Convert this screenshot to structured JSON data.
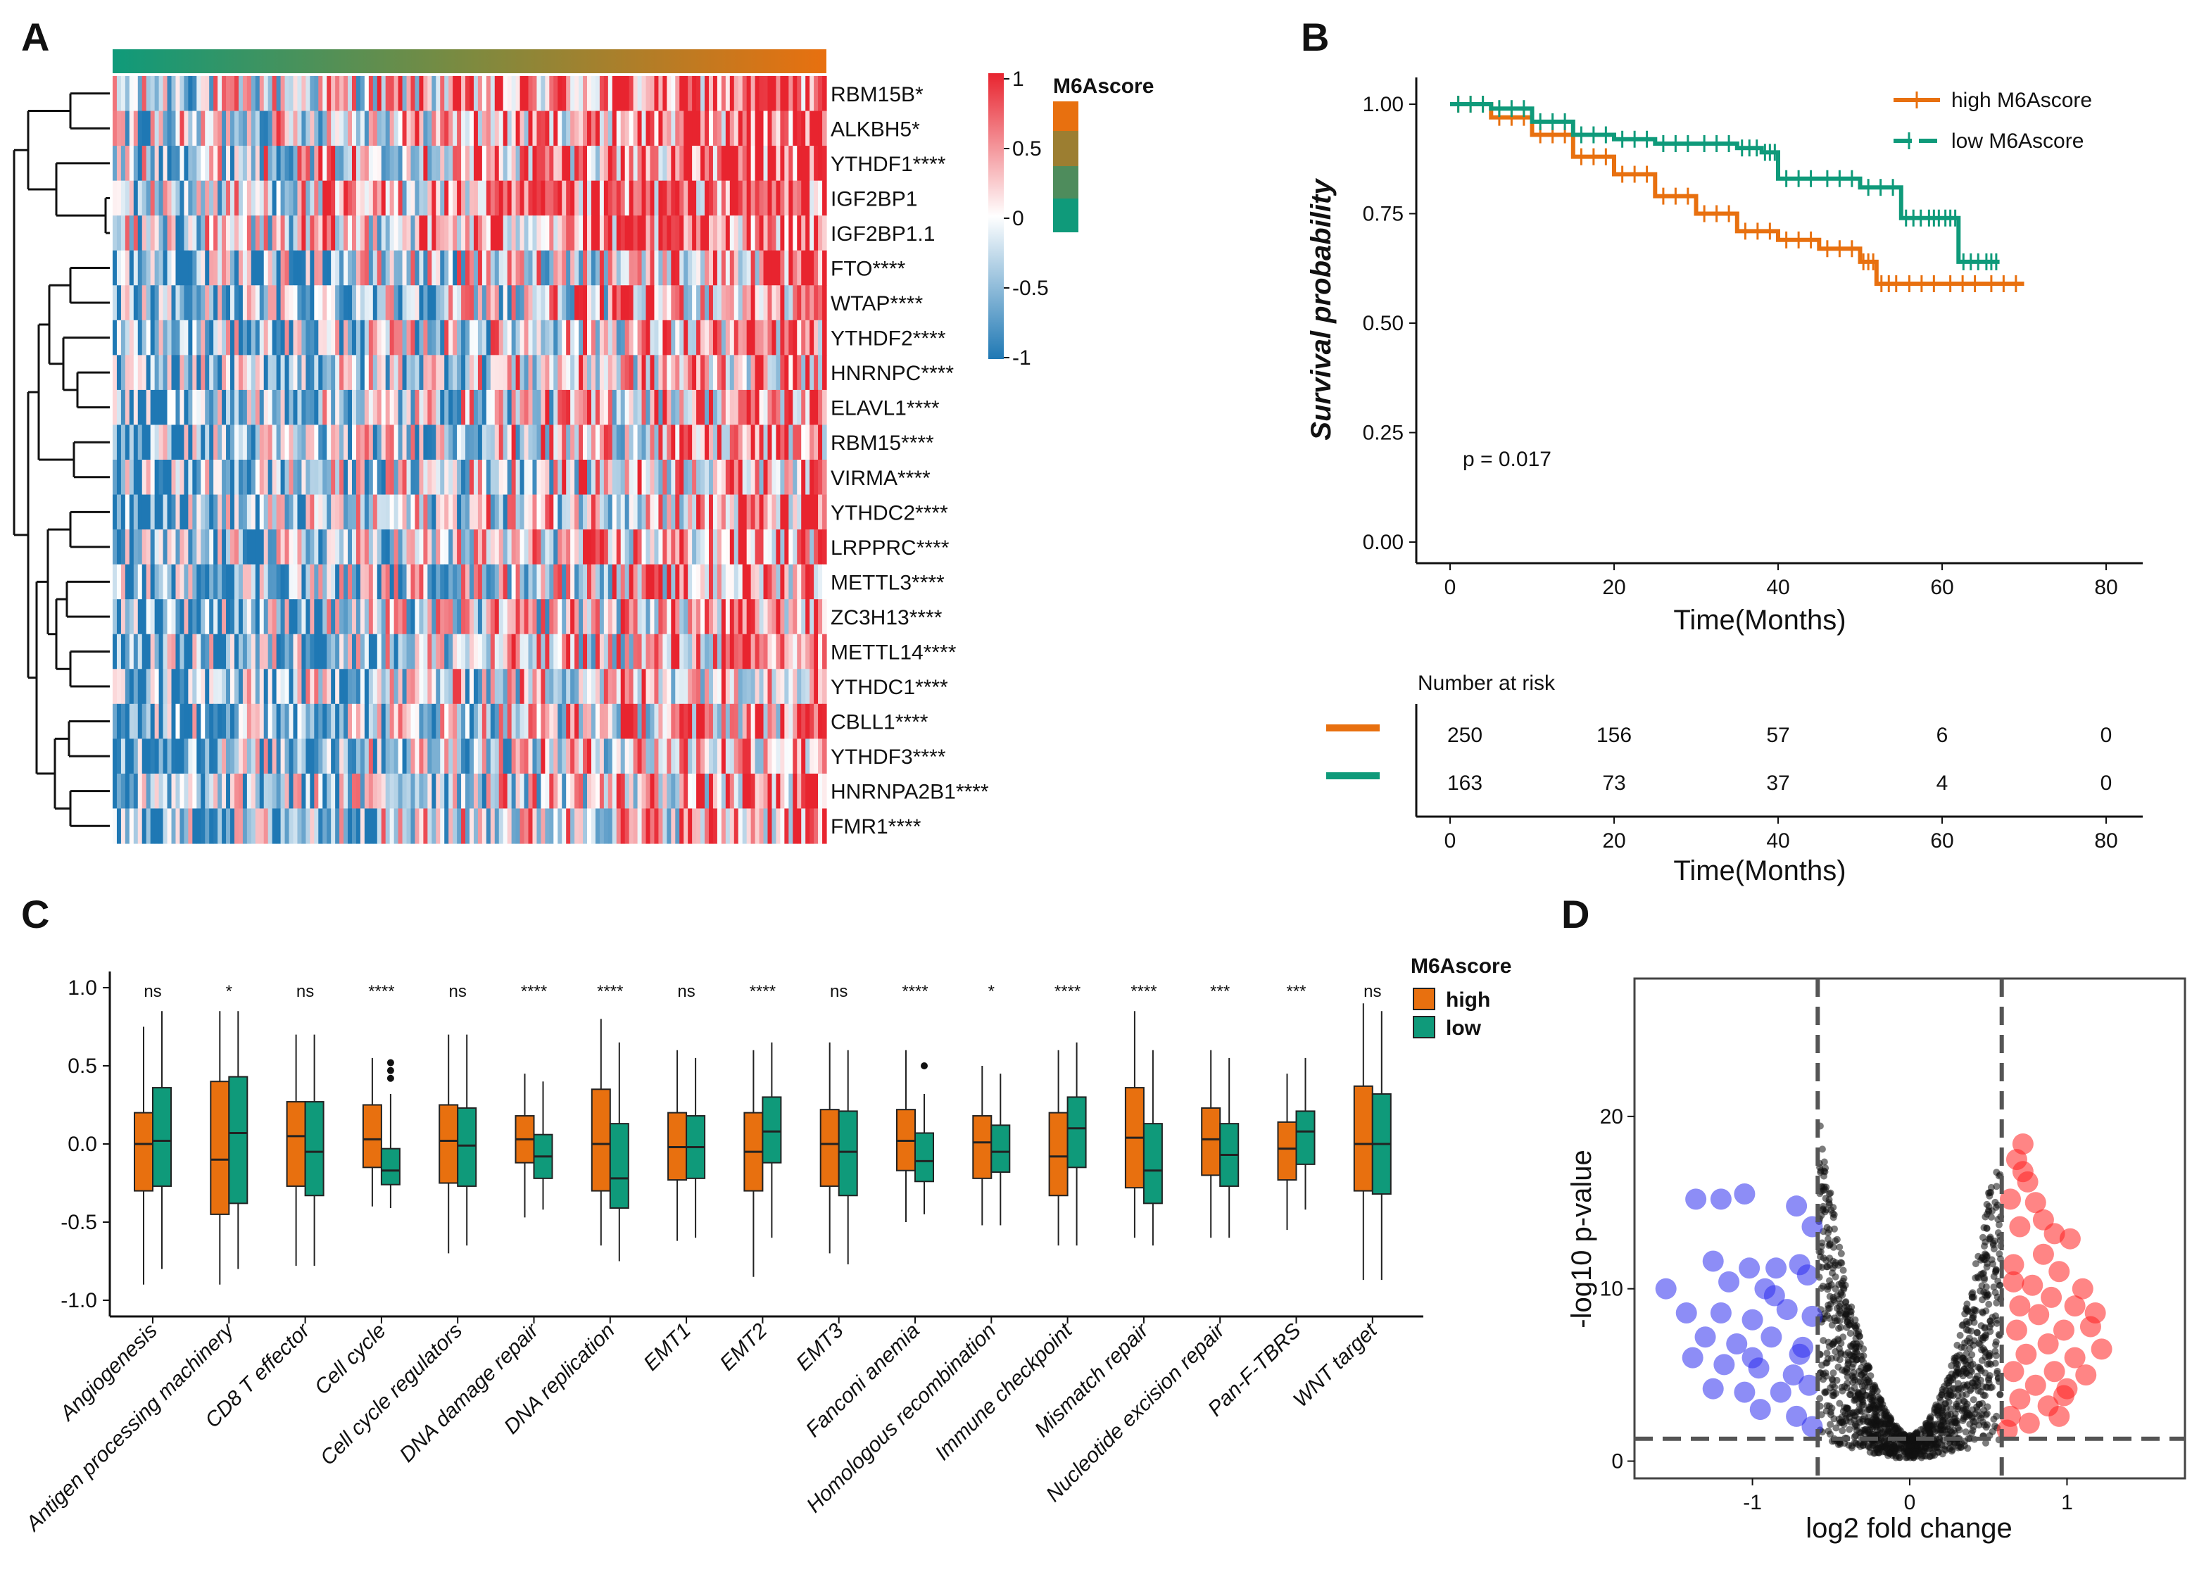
{
  "panels": [
    "A",
    "B",
    "C",
    "D"
  ],
  "colors": {
    "high": "#e8700f",
    "low": "#0f9a7a",
    "up": "#ff2020",
    "down": "#3030ee",
    "ns": "#111111",
    "heat_hi": "#e8242f",
    "heat_lo": "#1f78b4",
    "dark_red": "#a31515"
  },
  "chart_data": [
    {
      "type": "heatmap",
      "panel": "A",
      "genes": [
        "RBM15B*",
        "ALKBH5*",
        "YTHDF1****",
        "IGF2BP1",
        "IGF2BP1.1",
        "FTO****",
        "WTAP****",
        "YTHDF2****",
        "HNRNPC****",
        "ELAVL1****",
        "RBM15****",
        "VIRMA****",
        "YTHDC2****",
        "LRPPRC****",
        "METTL3****",
        "ZC3H13****",
        "METTL14****",
        "YTHDC1****",
        "CBLL1****",
        "YTHDF3****",
        "HNRNPA2B1****",
        "FMR1****"
      ],
      "colorbar": {
        "ticks": [
          "1",
          "0.5",
          "0",
          "-0.5",
          "-1"
        ],
        "range": [
          -1,
          1
        ]
      },
      "annotation": {
        "title": "M6Ascore"
      }
    },
    {
      "type": "line",
      "panel": "B",
      "title": "",
      "ylabel": "Survival probability",
      "xlabel": "Time(Months)",
      "xticks": [
        "0",
        "20",
        "40",
        "60",
        "80"
      ],
      "yticks": [
        "1.00",
        "0.75",
        "0.50",
        "0.25",
        "0.00"
      ],
      "xlim": [
        0,
        80
      ],
      "ylim": [
        0,
        1
      ],
      "pvalue": "p = 0.017",
      "series": [
        {
          "name": "high M6Ascore",
          "color": "#e8700f",
          "x": [
            0,
            5,
            10,
            15,
            20,
            25,
            30,
            35,
            40,
            45,
            50,
            52,
            55,
            60,
            65,
            70
          ],
          "y": [
            1.0,
            0.97,
            0.93,
            0.88,
            0.84,
            0.79,
            0.75,
            0.71,
            0.69,
            0.67,
            0.64,
            0.59,
            0.59,
            0.59,
            0.59,
            0.59
          ]
        },
        {
          "name": "low M6Ascore",
          "color": "#0f9a7a",
          "x": [
            0,
            5,
            10,
            15,
            20,
            25,
            30,
            35,
            38,
            40,
            45,
            50,
            55,
            58,
            60,
            62,
            65,
            67
          ],
          "y": [
            1.0,
            0.99,
            0.96,
            0.93,
            0.92,
            0.91,
            0.91,
            0.9,
            0.89,
            0.83,
            0.83,
            0.81,
            0.74,
            0.74,
            0.74,
            0.64,
            0.64,
            0.64
          ]
        }
      ],
      "risk_table": {
        "title": "Number at risk",
        "xlabel": "Time(Months)",
        "rows": [
          {
            "name": "high",
            "color": "#e8700f",
            "values": [
              "250",
              "156",
              "57",
              "6",
              "0"
            ]
          },
          {
            "name": "low",
            "color": "#0f9a7a",
            "values": [
              "163",
              "73",
              "37",
              "4",
              "0"
            ]
          }
        ]
      }
    },
    {
      "type": "box",
      "panel": "C",
      "legend_title": "M6Ascore",
      "legend": [
        "high",
        "low"
      ],
      "ylim": [
        -1.1,
        1.05
      ],
      "yticks": [
        "1.0",
        "0.5",
        "0.0",
        "-0.5",
        "-1.0"
      ],
      "categories": [
        "Angiogenesis",
        "Antigen processing machinery",
        "CD8 T effector",
        "Cell cycle",
        "Cell cycle regulators",
        "DNA damage repair",
        "DNA replication",
        "EMT1",
        "EMT2",
        "EMT3",
        "Fanconi anemia",
        "Homologous recombination",
        "Immune checkpoint",
        "Mismatch repair",
        "Nucleotide excision repair",
        "Pan-F-TBRS",
        "WNT target"
      ],
      "significance": [
        "ns",
        "*",
        "ns",
        "****",
        "ns",
        "****",
        "****",
        "ns",
        "****",
        "ns",
        "****",
        "*",
        "****",
        "****",
        "***",
        "***",
        "ns"
      ],
      "series": [
        {
          "name": "high",
          "color": "#e8700f",
          "boxes": [
            [
              -0.9,
              -0.3,
              0.0,
              0.2,
              0.75
            ],
            [
              -0.9,
              -0.45,
              -0.1,
              0.4,
              0.85
            ],
            [
              -0.78,
              -0.27,
              0.05,
              0.27,
              0.7
            ],
            [
              -0.4,
              -0.15,
              0.03,
              0.25,
              0.55
            ],
            [
              -0.7,
              -0.25,
              0.02,
              0.25,
              0.7
            ],
            [
              -0.47,
              -0.12,
              0.03,
              0.18,
              0.45
            ],
            [
              -0.65,
              -0.3,
              0.0,
              0.35,
              0.8
            ],
            [
              -0.62,
              -0.23,
              -0.02,
              0.2,
              0.6
            ],
            [
              -0.85,
              -0.3,
              -0.05,
              0.2,
              0.6
            ],
            [
              -0.7,
              -0.27,
              0.0,
              0.22,
              0.65
            ],
            [
              -0.5,
              -0.17,
              0.02,
              0.22,
              0.6
            ],
            [
              -0.52,
              -0.22,
              0.01,
              0.18,
              0.5
            ],
            [
              -0.65,
              -0.33,
              -0.08,
              0.2,
              0.6
            ],
            [
              -0.6,
              -0.28,
              0.04,
              0.36,
              0.85
            ],
            [
              -0.6,
              -0.2,
              0.03,
              0.23,
              0.6
            ],
            [
              -0.55,
              -0.23,
              -0.03,
              0.14,
              0.45
            ],
            [
              -0.87,
              -0.3,
              0.0,
              0.37,
              0.9
            ]
          ]
        },
        {
          "name": "low",
          "color": "#0f9a7a",
          "boxes": [
            [
              -0.8,
              -0.27,
              0.02,
              0.36,
              0.85
            ],
            [
              -0.8,
              -0.38,
              0.07,
              0.43,
              0.85
            ],
            [
              -0.78,
              -0.33,
              -0.05,
              0.27,
              0.7
            ],
            [
              -0.41,
              -0.26,
              -0.17,
              -0.03,
              0.32
            ],
            [
              -0.65,
              -0.27,
              -0.01,
              0.23,
              0.7
            ],
            [
              -0.42,
              -0.22,
              -0.08,
              0.06,
              0.4
            ],
            [
              -0.75,
              -0.41,
              -0.22,
              0.13,
              0.65
            ],
            [
              -0.6,
              -0.22,
              -0.02,
              0.18,
              0.55
            ],
            [
              -0.6,
              -0.12,
              0.08,
              0.3,
              0.65
            ],
            [
              -0.77,
              -0.33,
              -0.05,
              0.21,
              0.6
            ],
            [
              -0.45,
              -0.24,
              -0.11,
              0.07,
              0.32
            ],
            [
              -0.52,
              -0.18,
              -0.05,
              0.12,
              0.45
            ],
            [
              -0.65,
              -0.15,
              0.1,
              0.3,
              0.65
            ],
            [
              -0.65,
              -0.38,
              -0.17,
              0.13,
              0.6
            ],
            [
              -0.6,
              -0.27,
              -0.07,
              0.13,
              0.55
            ],
            [
              -0.42,
              -0.13,
              0.08,
              0.21,
              0.55
            ],
            [
              -0.87,
              -0.32,
              0.0,
              0.32,
              0.85
            ]
          ]
        }
      ]
    },
    {
      "type": "scatter",
      "panel": "D",
      "xlabel": "log2  fold change",
      "ylabel": "-log10 p-value",
      "xlim": [
        -1.75,
        1.75
      ],
      "ylim": [
        -1,
        28
      ],
      "xticks": [
        "-1",
        "0",
        "1"
      ],
      "yticks": [
        "0",
        "10",
        "20"
      ],
      "fc_cutoff": 0.585,
      "p_cutoff": 1.3,
      "up_points": [
        [
          0.72,
          18.4
        ],
        [
          0.68,
          17.5
        ],
        [
          0.75,
          16.2
        ],
        [
          0.64,
          15.2
        ],
        [
          0.8,
          15.0
        ],
        [
          0.92,
          13.2
        ],
        [
          1.02,
          12.9
        ],
        [
          0.7,
          13.6
        ],
        [
          0.85,
          12.0
        ],
        [
          0.95,
          11.0
        ],
        [
          0.66,
          11.4
        ],
        [
          1.1,
          10.0
        ],
        [
          0.78,
          10.2
        ],
        [
          0.9,
          9.5
        ],
        [
          1.05,
          9.0
        ],
        [
          0.7,
          9.0
        ],
        [
          0.82,
          8.5
        ],
        [
          1.15,
          7.8
        ],
        [
          0.98,
          7.6
        ],
        [
          0.68,
          7.6
        ],
        [
          1.22,
          6.5
        ],
        [
          0.88,
          6.8
        ],
        [
          1.05,
          6.0
        ],
        [
          0.74,
          6.2
        ],
        [
          0.92,
          5.2
        ],
        [
          1.12,
          5.0
        ],
        [
          0.66,
          5.2
        ],
        [
          0.8,
          4.4
        ],
        [
          1.0,
          4.2
        ],
        [
          0.7,
          3.6
        ],
        [
          0.88,
          3.2
        ],
        [
          0.64,
          2.6
        ],
        [
          0.76,
          2.2
        ],
        [
          0.95,
          2.6
        ],
        [
          0.62,
          1.8
        ],
        [
          0.72,
          16.8
        ],
        [
          0.85,
          14.0
        ],
        [
          0.66,
          10.4
        ],
        [
          1.18,
          8.6
        ],
        [
          0.98,
          3.8
        ]
      ],
      "down_points": [
        [
          -1.36,
          15.2
        ],
        [
          -1.2,
          15.2
        ],
        [
          -1.05,
          15.5
        ],
        [
          -0.72,
          14.8
        ],
        [
          -0.62,
          13.6
        ],
        [
          -1.25,
          11.6
        ],
        [
          -1.02,
          11.2
        ],
        [
          -0.85,
          11.2
        ],
        [
          -0.7,
          11.4
        ],
        [
          -1.55,
          10.0
        ],
        [
          -1.15,
          10.4
        ],
        [
          -0.92,
          10.0
        ],
        [
          -0.65,
          10.8
        ],
        [
          -1.42,
          8.6
        ],
        [
          -1.2,
          8.6
        ],
        [
          -1.0,
          8.2
        ],
        [
          -0.78,
          8.8
        ],
        [
          -0.62,
          8.4
        ],
        [
          -1.3,
          7.2
        ],
        [
          -1.1,
          6.8
        ],
        [
          -0.88,
          7.2
        ],
        [
          -0.68,
          6.6
        ],
        [
          -1.38,
          6.0
        ],
        [
          -1.18,
          5.6
        ],
        [
          -0.96,
          5.4
        ],
        [
          -0.74,
          5.0
        ],
        [
          -1.25,
          4.2
        ],
        [
          -1.05,
          4.0
        ],
        [
          -0.82,
          4.0
        ],
        [
          -0.64,
          4.4
        ],
        [
          -0.95,
          3.0
        ],
        [
          -0.72,
          2.6
        ],
        [
          -0.62,
          2.0
        ],
        [
          -0.7,
          6.2
        ],
        [
          -1.0,
          6.0
        ],
        [
          -0.86,
          9.6
        ]
      ]
    }
  ]
}
